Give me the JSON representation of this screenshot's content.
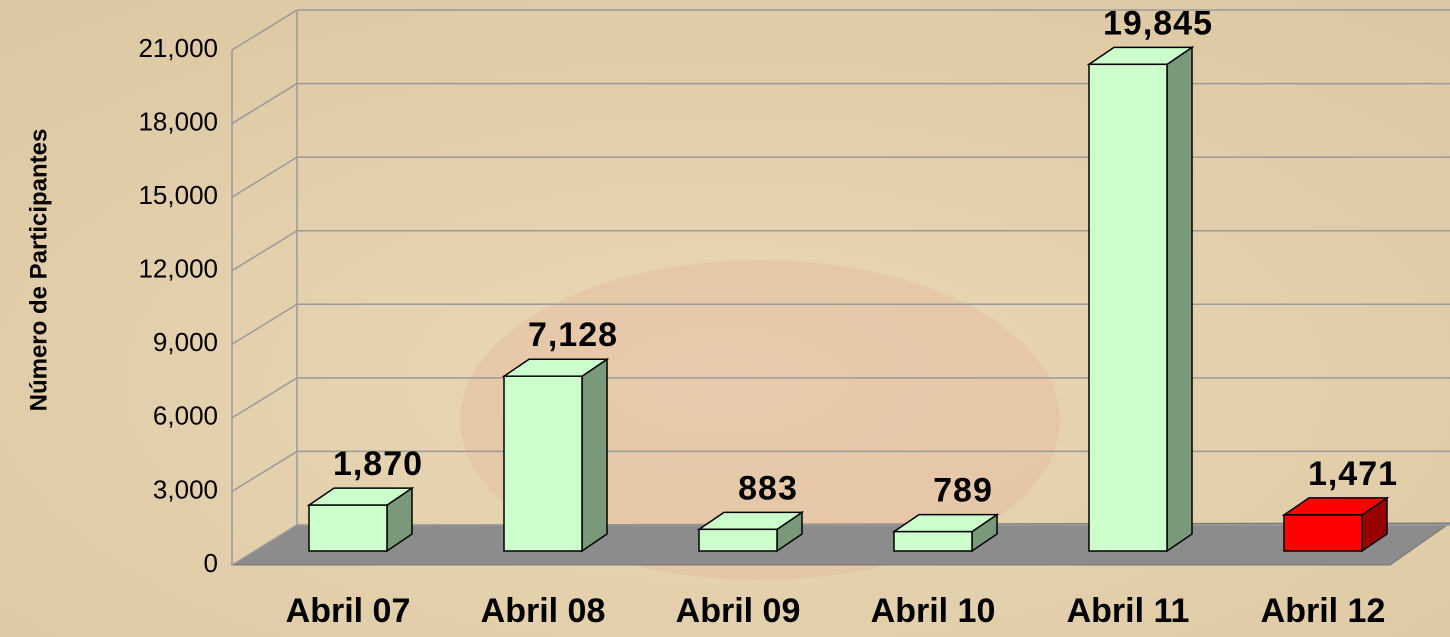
{
  "chart_data": {
    "type": "bar3d",
    "y_label": "Número de Participantes",
    "categories": [
      "Abril 07",
      "Abril 08",
      "Abril 09",
      "Abril 10",
      "Abril 11",
      "Abril 12"
    ],
    "values": [
      1870,
      7128,
      883,
      789,
      19845,
      1471
    ],
    "value_labels": [
      "1,870",
      "7,128",
      "883",
      "789",
      "19,845",
      "1,471"
    ],
    "colors": [
      "#ccffcc",
      "#ccffcc",
      "#ccffcc",
      "#ccffcc",
      "#ccffcc",
      "#ff0000"
    ],
    "ylim": [
      0,
      21000
    ],
    "yticks": [
      0,
      {
        "value": 3000,
        "label": "3,000"
      },
      {
        "value": 6000,
        "label": "6,000"
      },
      {
        "value": 9000,
        "label": "9,000"
      },
      {
        "value": 12000,
        "label": "12,000"
      },
      {
        "value": 15000,
        "label": "15,000"
      },
      {
        "value": 18000,
        "label": "18,000"
      },
      {
        "value": 21000,
        "label": "21,000"
      }
    ],
    "grid": true
  }
}
